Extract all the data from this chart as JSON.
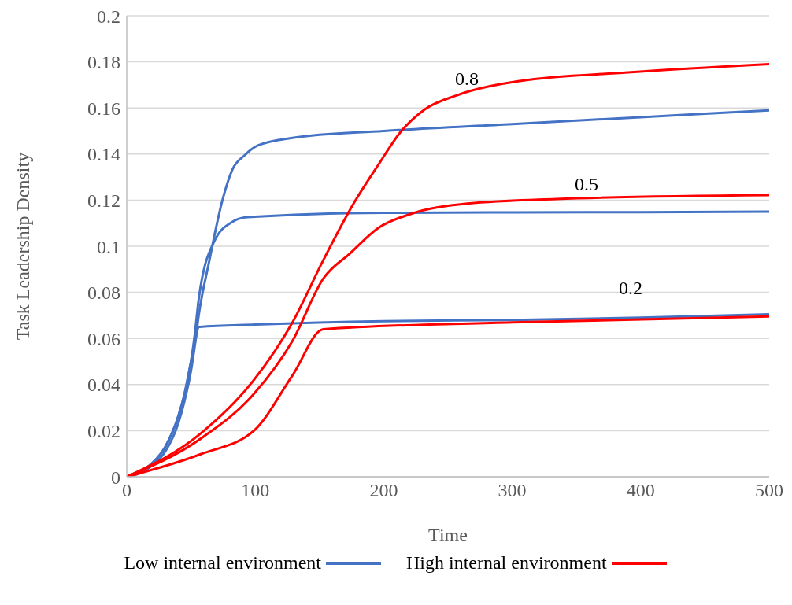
{
  "chart_data": {
    "type": "line",
    "xlabel": "Time",
    "ylabel": "Task Leadership Density",
    "xlim": [
      0,
      500
    ],
    "xticks": [
      0,
      100,
      200,
      300,
      400,
      500
    ],
    "ylim": [
      0,
      0.2
    ],
    "yticks": [
      0,
      0.02,
      0.04,
      0.06,
      0.08,
      0.1,
      0.12,
      0.14,
      0.16,
      0.18,
      0.2
    ],
    "grid": "y",
    "legend": "bottom",
    "marker": "none",
    "line_style": "solid",
    "annotations": [
      "0.8",
      "0.5",
      "0.2"
    ],
    "series": [
      {
        "name": "Low internal environment",
        "color": "#4472c4",
        "x": [
          0,
          10,
          20,
          30,
          40,
          45,
          50,
          53,
          56,
          100,
          200,
          300,
          400,
          500
        ],
        "values": [
          0,
          0.002,
          0.006,
          0.013,
          0.026,
          0.036,
          0.05,
          0.058,
          0.065,
          0.066,
          0.0675,
          0.068,
          0.069,
          0.0705
        ]
      },
      {
        "color": "#4472c4",
        "x": [
          0,
          10,
          20,
          30,
          40,
          45,
          50,
          53,
          56,
          68,
          82,
          94,
          200,
          300,
          400,
          500
        ],
        "values": [
          0,
          0.002,
          0.006,
          0.013,
          0.026,
          0.036,
          0.05,
          0.062,
          0.077,
          0.102,
          0.1105,
          0.1126,
          0.1145,
          0.1147,
          0.1148,
          0.115
        ]
      },
      {
        "color": "#4472c4",
        "x": [
          0,
          10,
          20,
          30,
          40,
          45,
          50,
          53,
          56,
          64,
          74,
          82,
          92,
          102,
          129,
          200,
          300,
          400,
          500
        ],
        "values": [
          0,
          0.0015,
          0.005,
          0.011,
          0.023,
          0.033,
          0.046,
          0.057,
          0.07,
          0.093,
          0.119,
          0.133,
          0.1396,
          0.1437,
          0.147,
          0.15,
          0.153,
          0.156,
          0.159
        ]
      },
      {
        "name": "High internal environment",
        "color": "#ff0000",
        "x": [
          0,
          58,
          99,
          129,
          153,
          300,
          500
        ],
        "values": [
          0,
          0.0099,
          0.02,
          0.044,
          0.064,
          0.067,
          0.0695
        ]
      },
      {
        "color": "#ff0000",
        "x": [
          0,
          58,
          99,
          129,
          153,
          174,
          196,
          221,
          265,
          334,
          500
        ],
        "values": [
          0,
          0.0167,
          0.036,
          0.059,
          0.086,
          0.097,
          0.108,
          0.114,
          0.1185,
          0.1205,
          0.1222
        ]
      },
      {
        "color": "#ff0000",
        "x": [
          0,
          58,
          99,
          129,
          153,
          176,
          196,
          213,
          232,
          257,
          306,
          390,
          500
        ],
        "values": [
          0,
          0.019,
          0.042,
          0.067,
          0.094,
          0.118,
          0.1355,
          0.1495,
          0.1594,
          0.1655,
          0.1717,
          0.1754,
          0.179
        ]
      }
    ]
  }
}
